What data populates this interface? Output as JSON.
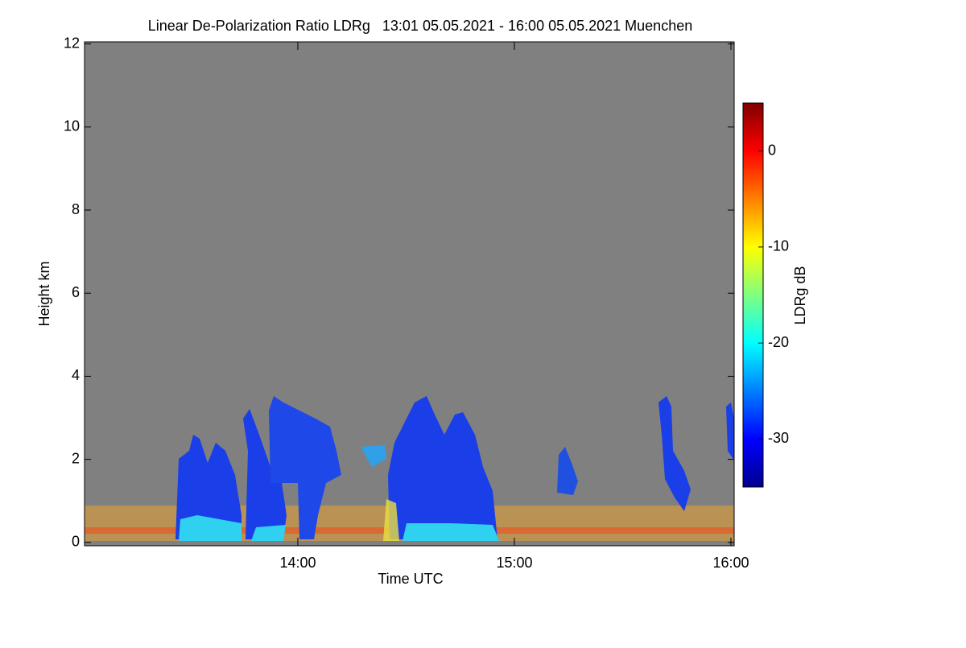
{
  "chart_data": {
    "type": "heatmap",
    "title": "Linear De-Polarization Ratio LDRg   13:01 05.05.2021 - 16:00 05.05.2021 Muenchen",
    "x_label": "Time UTC",
    "y_label": "Height km",
    "xlim": [
      13.015,
      16.015
    ],
    "xticks": [
      {
        "value": 14,
        "label": "14:00"
      },
      {
        "value": 15,
        "label": "15:00"
      },
      {
        "value": 16,
        "label": "16:00"
      }
    ],
    "ylim": [
      -0.08,
      12.05
    ],
    "yticks": [
      0,
      2,
      4,
      6,
      8,
      10,
      12
    ],
    "colorbar": {
      "label": "LDRg dB",
      "lim": [
        -35,
        5
      ],
      "ticks": [
        0,
        -10,
        -20,
        -30
      ],
      "colormap": "jet"
    },
    "background_color": "#808080"
  }
}
